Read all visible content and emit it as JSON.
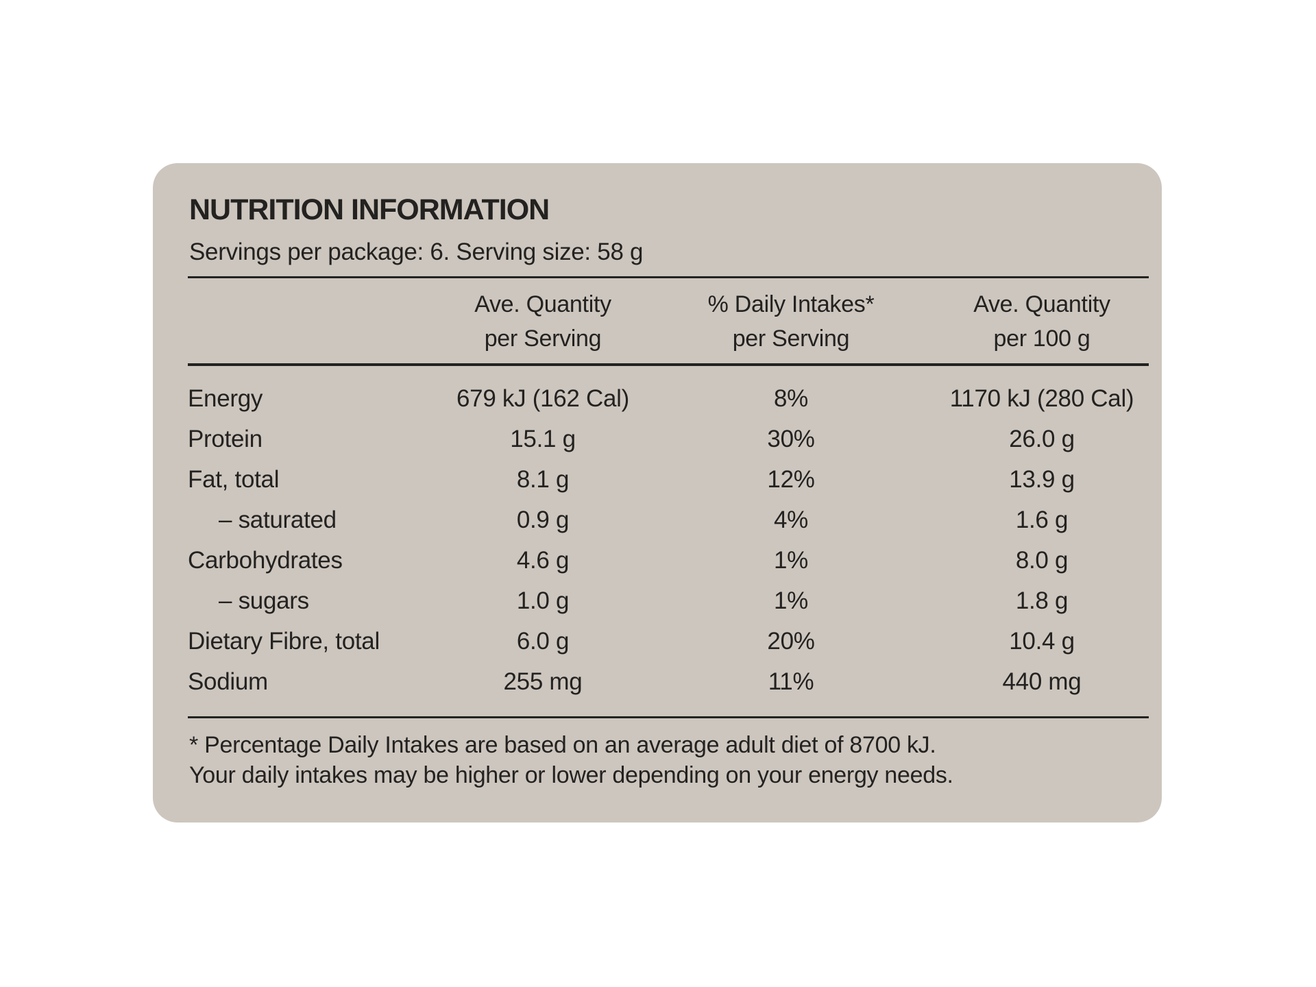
{
  "page": {
    "background": "#ffffff"
  },
  "label": {
    "title": "NUTRITION INFORMATION",
    "servings_line": "Servings per package: 6. Serving size: 58 g",
    "colors": {
      "card_background": "#cdc6be",
      "text": "#232220",
      "rule": "#232220"
    },
    "table": {
      "columns": [
        {
          "line1": "Ave. Quantity",
          "line2": "per Serving"
        },
        {
          "line1": "% Daily Intakes*",
          "line2": "per Serving"
        },
        {
          "line1": "Ave. Quantity",
          "line2": "per 100 g"
        }
      ],
      "rows": [
        {
          "nutrient": "Energy",
          "indent": false,
          "per_serving": "679 kJ (162 Cal)",
          "daily_intakes": "8%",
          "per_100g": "1170 kJ (280 Cal)"
        },
        {
          "nutrient": "Protein",
          "indent": false,
          "per_serving": "15.1 g",
          "daily_intakes": "30%",
          "per_100g": "26.0 g"
        },
        {
          "nutrient": "Fat, total",
          "indent": false,
          "per_serving": "8.1 g",
          "daily_intakes": "12%",
          "per_100g": "13.9 g"
        },
        {
          "nutrient": "– saturated",
          "indent": true,
          "per_serving": "0.9 g",
          "daily_intakes": "4%",
          "per_100g": "1.6 g"
        },
        {
          "nutrient": "Carbohydrates",
          "indent": false,
          "per_serving": "4.6 g",
          "daily_intakes": "1%",
          "per_100g": "8.0 g"
        },
        {
          "nutrient": "– sugars",
          "indent": true,
          "per_serving": "1.0 g",
          "daily_intakes": "1%",
          "per_100g": "1.8 g"
        },
        {
          "nutrient": "Dietary Fibre, total",
          "indent": false,
          "per_serving": "6.0 g",
          "daily_intakes": "20%",
          "per_100g": "10.4 g"
        },
        {
          "nutrient": "Sodium",
          "indent": false,
          "per_serving": "255 mg",
          "daily_intakes": "11%",
          "per_100g": "440 mg"
        }
      ]
    },
    "footnote": {
      "line1": "* Percentage Daily Intakes are based on an average adult diet of 8700 kJ.",
      "line2": "Your daily intakes may be higher or lower depending on your energy needs."
    }
  }
}
